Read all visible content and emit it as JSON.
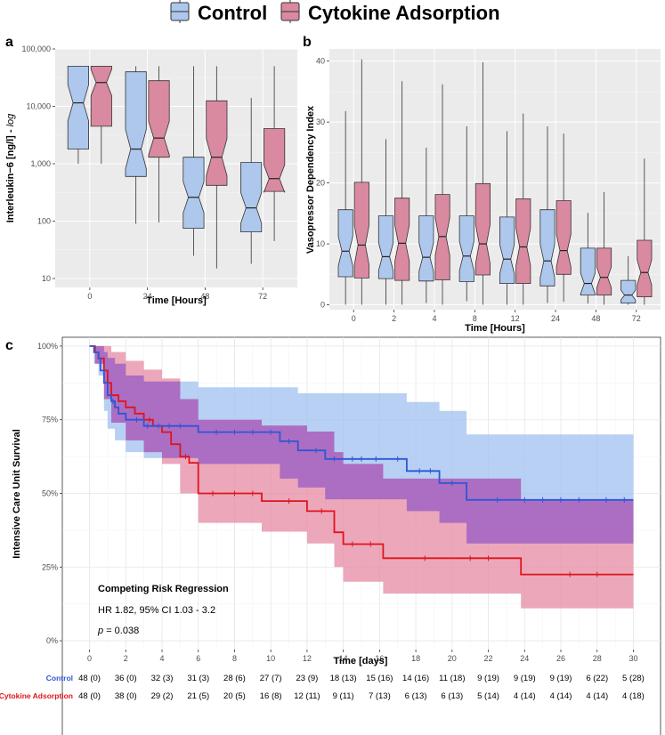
{
  "legend": {
    "items": [
      {
        "label": "Control",
        "color": "#aec7ec"
      },
      {
        "label": "Cytokine Adsorption",
        "color": "#d98aa0"
      }
    ]
  },
  "colors": {
    "control_fill": "#aec7ec",
    "cytokine_fill": "#d98aa0",
    "control_line": "#2e56d6",
    "cytokine_line": "#e0141b",
    "control_band": "#9fc0f0",
    "cytokine_band": "#e58aa3",
    "overlap_band": "#a96cc3"
  },
  "chart_data": [
    {
      "id": "a",
      "panel_letter": "a",
      "type": "boxplot",
      "xlabel": "Time [Hours]",
      "ylabel": "Interleukin−6 [ng/l] - log",
      "ylabel_main": "Interleukin−6 [ng/l] -",
      "ylabel_italic": "log",
      "yscale": "log",
      "ylim": [
        7,
        100000
      ],
      "yticks": [
        10,
        100,
        1000,
        10000,
        100000
      ],
      "ytick_labels": [
        "10",
        "100",
        "1,000",
        "10,000",
        "100,000"
      ],
      "categories": [
        "0",
        "24",
        "48",
        "72"
      ],
      "series": [
        {
          "name": "Control",
          "boxes": [
            {
              "min": 1000,
              "q1": 1800,
              "median": 11500,
              "q3": 50000,
              "max": 50000
            },
            {
              "min": 90,
              "q1": 600,
              "median": 1800,
              "q3": 40000,
              "max": 50000
            },
            {
              "min": 25,
              "q1": 75,
              "median": 260,
              "q3": 1300,
              "max": 50000
            },
            {
              "min": 18,
              "q1": 65,
              "median": 170,
              "q3": 1050,
              "max": 14000
            }
          ]
        },
        {
          "name": "Cytokine Adsorption",
          "boxes": [
            {
              "min": 1000,
              "q1": 4500,
              "median": 26000,
              "q3": 50000,
              "max": 50000
            },
            {
              "min": 95,
              "q1": 1300,
              "median": 2800,
              "q3": 28000,
              "max": 50000
            },
            {
              "min": 15,
              "q1": 420,
              "median": 1300,
              "q3": 12500,
              "max": 50000
            },
            {
              "min": 45,
              "q1": 330,
              "median": 550,
              "q3": 4100,
              "max": 50000
            }
          ]
        }
      ]
    },
    {
      "id": "b",
      "panel_letter": "b",
      "type": "boxplot",
      "xlabel": "Time [Hours]",
      "ylabel": "Vasopressor Dependency Index",
      "yscale": "linear",
      "ylim": [
        -0.8,
        42
      ],
      "yticks": [
        0,
        10,
        20,
        30,
        40
      ],
      "ytick_labels": [
        "0",
        "10",
        "20",
        "30",
        "40"
      ],
      "categories": [
        "0",
        "2",
        "4",
        "8",
        "12",
        "24",
        "48",
        "72"
      ],
      "series": [
        {
          "name": "Control",
          "boxes": [
            {
              "min": 0,
              "q1": 4.6,
              "median": 8.8,
              "q3": 15.6,
              "max": 31.8
            },
            {
              "min": 0,
              "q1": 4.3,
              "median": 7.9,
              "q3": 14.6,
              "max": 27.2
            },
            {
              "min": 0.3,
              "q1": 3.9,
              "median": 7.8,
              "q3": 14.6,
              "max": 25.8
            },
            {
              "min": 0.6,
              "q1": 3.8,
              "median": 8.0,
              "q3": 14.6,
              "max": 29.3
            },
            {
              "min": 0,
              "q1": 3.5,
              "median": 7.5,
              "q3": 14.4,
              "max": 28.5
            },
            {
              "min": 0.3,
              "q1": 3.1,
              "median": 7.2,
              "q3": 15.6,
              "max": 29.3
            },
            {
              "min": 0.2,
              "q1": 1.6,
              "median": 3.5,
              "q3": 9.3,
              "max": 15.1
            },
            {
              "min": 0,
              "q1": 0.3,
              "median": 1.6,
              "q3": 4.0,
              "max": 8.0
            }
          ]
        },
        {
          "name": "Cytokine Adsorption",
          "boxes": [
            {
              "min": 0,
              "q1": 4.4,
              "median": 9.8,
              "q3": 20.1,
              "max": 40.3
            },
            {
              "min": 0,
              "q1": 4.0,
              "median": 10.1,
              "q3": 17.5,
              "max": 36.7
            },
            {
              "min": 0,
              "q1": 4.1,
              "median": 11.2,
              "q3": 18.1,
              "max": 36.2
            },
            {
              "min": 0,
              "q1": 4.9,
              "median": 10.0,
              "q3": 19.9,
              "max": 39.8
            },
            {
              "min": 0,
              "q1": 3.5,
              "median": 9.5,
              "q3": 17.4,
              "max": 31.4
            },
            {
              "min": 0.5,
              "q1": 5.0,
              "median": 8.9,
              "q3": 17.1,
              "max": 28.1
            },
            {
              "min": 0,
              "q1": 1.6,
              "median": 4.5,
              "q3": 9.3,
              "max": 18.5
            },
            {
              "min": 0,
              "q1": 1.3,
              "median": 5.3,
              "q3": 10.6,
              "max": 24.0
            }
          ]
        }
      ]
    },
    {
      "id": "c",
      "panel_letter": "c",
      "type": "line",
      "subtype": "step",
      "xlabel": "Time [days]",
      "ylabel": "Intensive Care Unit Survival",
      "xlim": [
        -1.5,
        31.5
      ],
      "ylim": [
        -0.03,
        1.03
      ],
      "xticks": [
        0,
        2,
        4,
        6,
        8,
        10,
        12,
        14,
        16,
        18,
        20,
        22,
        24,
        26,
        28,
        30
      ],
      "xtick_labels": [
        "0",
        "2",
        "4",
        "6",
        "8",
        "10",
        "12",
        "14",
        "16",
        "18",
        "20",
        "22",
        "24",
        "26",
        "28",
        "30"
      ],
      "yticks": [
        0,
        0.25,
        0.5,
        0.75,
        1.0
      ],
      "ytick_labels": [
        "0%",
        "25%",
        "50%",
        "75%",
        "100%"
      ],
      "series": [
        {
          "name": "Control",
          "steps": [
            [
              0,
              1.0
            ],
            [
              0.25,
              0.979
            ],
            [
              0.5,
              0.958
            ],
            [
              0.6,
              0.917
            ],
            [
              0.8,
              0.875
            ],
            [
              1.0,
              0.833
            ],
            [
              1.2,
              0.813
            ],
            [
              1.4,
              0.792
            ],
            [
              1.6,
              0.771
            ],
            [
              2.0,
              0.75
            ],
            [
              3.0,
              0.729
            ],
            [
              6.0,
              0.708
            ],
            [
              10.5,
              0.677
            ],
            [
              11.5,
              0.646
            ],
            [
              13.0,
              0.617
            ],
            [
              17.5,
              0.576
            ],
            [
              19.3,
              0.535
            ],
            [
              20.8,
              0.478
            ],
            [
              30.0,
              0.478
            ]
          ],
          "ci_band": [
            [
              0,
              1.0,
              1.0
            ],
            [
              0.25,
              0.94,
              1.0
            ],
            [
              0.5,
              0.9,
              1.0
            ],
            [
              0.8,
              0.78,
              0.98
            ],
            [
              1.0,
              0.72,
              0.96
            ],
            [
              1.4,
              0.68,
              0.94
            ],
            [
              2.0,
              0.64,
              0.9
            ],
            [
              3.0,
              0.62,
              0.88
            ],
            [
              6.0,
              0.6,
              0.86
            ],
            [
              10.5,
              0.55,
              0.86
            ],
            [
              11.5,
              0.52,
              0.84
            ],
            [
              13.0,
              0.48,
              0.84
            ],
            [
              17.5,
              0.44,
              0.81
            ],
            [
              19.3,
              0.4,
              0.78
            ],
            [
              20.8,
              0.33,
              0.7
            ],
            [
              30.0,
              0.33,
              0.7
            ]
          ],
          "censor_times": [
            1.3,
            2.6,
            3.2,
            3.8,
            4.4,
            5.0,
            7.0,
            8.0,
            9.0,
            10.0,
            11.0,
            12.5,
            13.5,
            14.5,
            15.0,
            15.8,
            17.0,
            18.2,
            18.8,
            20.0,
            22.5,
            24.0,
            25.0,
            26.0,
            27.0,
            28.5,
            29.5
          ]
        },
        {
          "name": "Cytokine Adsorption",
          "steps": [
            [
              0,
              1.0
            ],
            [
              0.3,
              0.979
            ],
            [
              0.5,
              0.958
            ],
            [
              0.8,
              0.917
            ],
            [
              1.0,
              0.875
            ],
            [
              1.2,
              0.833
            ],
            [
              1.6,
              0.813
            ],
            [
              2.0,
              0.792
            ],
            [
              2.5,
              0.771
            ],
            [
              3.0,
              0.75
            ],
            [
              3.5,
              0.729
            ],
            [
              4.0,
              0.708
            ],
            [
              4.5,
              0.667
            ],
            [
              5.0,
              0.625
            ],
            [
              5.5,
              0.604
            ],
            [
              6.0,
              0.5
            ],
            [
              9.5,
              0.474
            ],
            [
              12.0,
              0.44
            ],
            [
              13.5,
              0.368
            ],
            [
              14.0,
              0.328
            ],
            [
              16.2,
              0.28
            ],
            [
              23.8,
              0.225
            ],
            [
              30.0,
              0.225
            ]
          ],
          "ci_band": [
            [
              0,
              1.0,
              1.0
            ],
            [
              0.3,
              0.94,
              1.0
            ],
            [
              0.8,
              0.82,
              1.0
            ],
            [
              1.2,
              0.74,
              0.98
            ],
            [
              2.0,
              0.68,
              0.95
            ],
            [
              3.0,
              0.64,
              0.92
            ],
            [
              4.0,
              0.6,
              0.89
            ],
            [
              5.0,
              0.5,
              0.82
            ],
            [
              6.0,
              0.4,
              0.75
            ],
            [
              9.5,
              0.37,
              0.73
            ],
            [
              12.0,
              0.33,
              0.71
            ],
            [
              13.5,
              0.25,
              0.64
            ],
            [
              14.0,
              0.2,
              0.6
            ],
            [
              16.2,
              0.16,
              0.55
            ],
            [
              23.8,
              0.11,
              0.48
            ],
            [
              30.0,
              0.11,
              0.48
            ]
          ],
          "censor_times": [
            3.3,
            5.3,
            6.8,
            8.0,
            9.0,
            11.0,
            12.8,
            14.5,
            15.5,
            18.5,
            21.0,
            22.0,
            26.5,
            28.0
          ]
        }
      ],
      "annotation": {
        "title": "Competing Risk Regression",
        "hr_line": "HR 1.82, 95% CI 1.03 - 3.2",
        "p_label": "p",
        "p_value": "= 0.038"
      },
      "risk_table": {
        "rows": [
          {
            "label": "Control",
            "color": "#2e56d6",
            "values": [
              "48 (0)",
              "36 (0)",
              "32 (3)",
              "31 (3)",
              "28 (6)",
              "27 (7)",
              "23 (9)",
              "18 (13)",
              "15 (16)",
              "14 (16)",
              "11 (18)",
              "9 (19)",
              "9 (19)",
              "9 (19)",
              "6 (22)",
              "5 (28)"
            ]
          },
          {
            "label": "Cytokine Adsorption",
            "color": "#e0141b",
            "values": [
              "48 (0)",
              "38 (0)",
              "29 (2)",
              "21 (5)",
              "20 (5)",
              "16 (8)",
              "12 (11)",
              "9 (11)",
              "7 (13)",
              "6 (13)",
              "6 (13)",
              "5 (14)",
              "4 (14)",
              "4 (14)",
              "4 (14)",
              "4 (18)"
            ]
          }
        ]
      }
    }
  ]
}
